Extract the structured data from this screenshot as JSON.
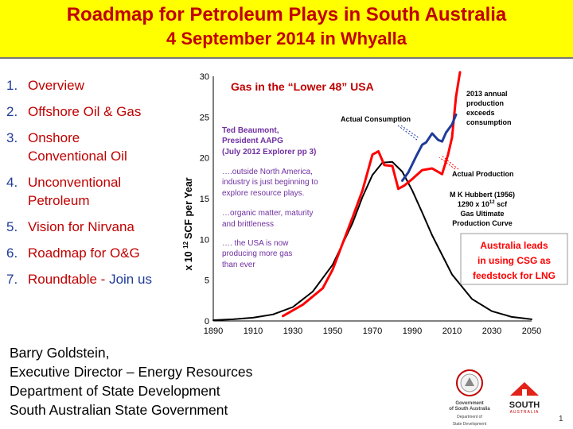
{
  "header": {
    "title": "Roadmap for Petroleum Plays in South Australia",
    "subtitle": "4 September 2014 in Whyalla",
    "background": "#ffff00",
    "title_color": "#c00000"
  },
  "agenda": [
    {
      "num": "1.",
      "label": "Overview"
    },
    {
      "num": "2.",
      "label": "Offshore Oil & Gas"
    },
    {
      "num": "3.",
      "label": "Onshore Conventional Oil"
    },
    {
      "num": "4.",
      "label": "Unconventional Petroleum"
    },
    {
      "num": "5.",
      "label": "Vision for Nirvana"
    },
    {
      "num": "6.",
      "label": "Roadmap for O&G"
    },
    {
      "num": "7.",
      "label": "Roundtable - ",
      "label_extra": "Join us"
    }
  ],
  "author": {
    "line1": "Barry Goldstein,",
    "line2": "Executive Director – Energy Resources",
    "line3": "Department of State Development",
    "line4": "South Australian State Government"
  },
  "logos": {
    "gov_line1": "Government",
    "gov_line2": "of South Australia",
    "gov_line3": "Department of",
    "gov_line4": "State Development",
    "sa_word": "SOUTH",
    "sa_sub": "AUSTRALIA"
  },
  "page_number": "1",
  "chart_data": {
    "type": "line",
    "title": "Gas in the  “Lower 48” USA",
    "xlabel": "",
    "ylabel": "x 10 12 SCF per Year",
    "ylabel_parts": {
      "prefix": "x 10 ",
      "sup": "12",
      "suffix": "SCF per Year"
    },
    "x_tick_labels": [
      "1890",
      "1910",
      "1930",
      "1950",
      "1970",
      "1990",
      "2010",
      "2030",
      "2050"
    ],
    "x_tick_values": [
      1890,
      1910,
      1930,
      1950,
      1970,
      1990,
      2010,
      2030,
      2050
    ],
    "y_ticks": [
      0,
      5,
      10,
      15,
      20,
      25,
      30
    ],
    "xlim": [
      1890,
      2050
    ],
    "ylim": [
      0,
      30
    ],
    "grid": false,
    "series": [
      {
        "name": "M K Hubbert (1956) 1290 x 10 12 scf Gas Ultimate Production Curve",
        "color": "#000000",
        "x": [
          1890,
          1900,
          1910,
          1920,
          1930,
          1940,
          1950,
          1960,
          1965,
          1970,
          1975,
          1980,
          1985,
          1990,
          1995,
          2000,
          2010,
          2020,
          2030,
          2040,
          2050
        ],
        "y": [
          0.1,
          0.2,
          0.4,
          0.8,
          1.7,
          3.6,
          6.9,
          12.0,
          15.2,
          17.9,
          19.4,
          19.5,
          18.3,
          16.0,
          13.3,
          10.5,
          5.7,
          2.7,
          1.2,
          0.5,
          0.2
        ]
      },
      {
        "name": "Actual Production",
        "color": "#ff0000",
        "x": [
          1925,
          1935,
          1945,
          1950,
          1955,
          1960,
          1965,
          1970,
          1973,
          1976,
          1980,
          1983,
          1986,
          1990,
          1995,
          2000,
          2005,
          2008,
          2010,
          2012,
          2014
        ],
        "y": [
          0.6,
          2.0,
          4.0,
          6.3,
          9.5,
          12.7,
          16.0,
          20.4,
          20.8,
          19.1,
          19.0,
          16.2,
          16.6,
          17.4,
          18.5,
          18.7,
          18.0,
          20.4,
          22.5,
          27.5,
          30.5
        ]
      },
      {
        "name": "Actual Consumption",
        "color": "#1f3b9a",
        "x": [
          1985,
          1988,
          1990,
          1992,
          1995,
          1997,
          2000,
          2003,
          2005,
          2007,
          2010,
          2012
        ],
        "y": [
          17.2,
          18.2,
          19.2,
          20.2,
          21.6,
          21.9,
          23.0,
          22.2,
          22.0,
          23.1,
          24.1,
          25.3
        ]
      }
    ],
    "annotations": {
      "production_exceeds": [
        "2013 annual",
        "production",
        "exceeds",
        "consumption"
      ],
      "actual_consumption": "Actual Consumption",
      "actual_production": "Actual Production",
      "hubbert": [
        "M K Hubbert (1956)",
        "1290 x 10",
        "12",
        " scf",
        "Gas Ultimate",
        "Production Curve"
      ],
      "beaumont": [
        "Ted Beaumont,",
        "President AAPG",
        "(July 2012 Explorer pp 3)"
      ],
      "quote1": [
        "….outside North America,",
        "industry is just beginning to",
        "explore resource plays."
      ],
      "quote2": [
        "…organic matter, maturity",
        "and brittleness"
      ],
      "quote3": [
        "…. the USA is now",
        "producing more gas",
        "than ever"
      ],
      "callout": [
        "Australia leads",
        "in using CSG as",
        "feedstock for LNG"
      ]
    }
  }
}
